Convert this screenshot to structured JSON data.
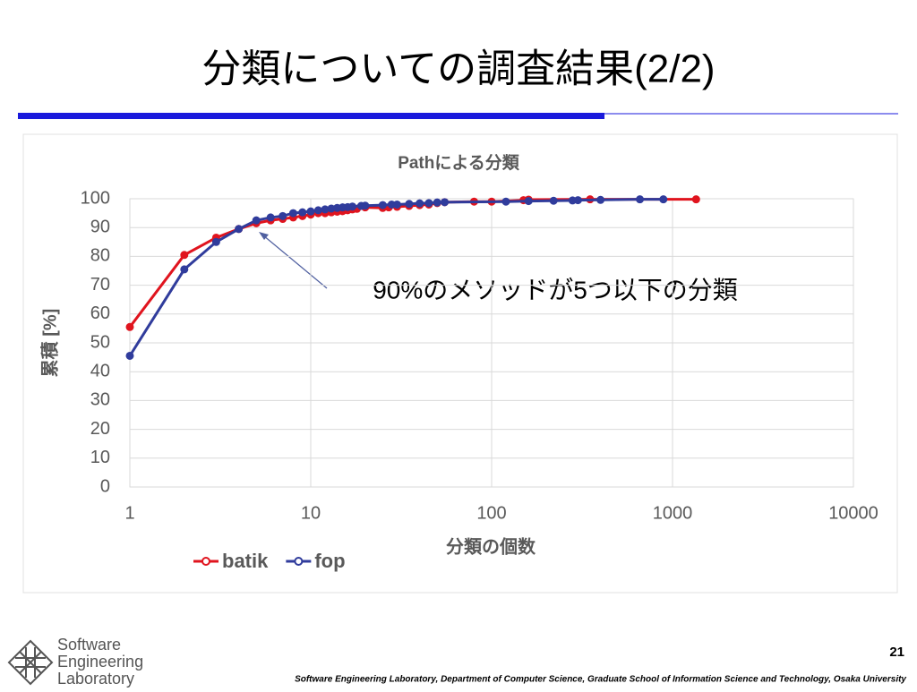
{
  "slide": {
    "title": "分類についての調査結果(2/2)",
    "page_number": 21,
    "footer": "Software Engineering Laboratory, Department of Computer Science, Graduate School of Information Science and Technology, Osaka University",
    "logo": [
      "Software",
      "Engineering",
      "Laboratory"
    ]
  },
  "chart_data": {
    "type": "line",
    "title": "Pathによる分類",
    "xlabel": "分類の個数",
    "ylabel": "累積 [%]",
    "annotation": "90%のメソッドが5つ以下の分類",
    "xlim": [
      1,
      10000
    ],
    "xticks": [
      1,
      10,
      100,
      1000,
      10000
    ],
    "log_x": true,
    "ylim": [
      0,
      100
    ],
    "yticks": [
      0,
      10,
      20,
      30,
      40,
      50,
      60,
      70,
      80,
      90,
      100
    ],
    "grid": true,
    "legend": "bottom",
    "series": [
      {
        "name": "batik",
        "color": "#e0141e",
        "x": [
          1,
          2,
          3,
          4,
          5,
          6,
          7,
          8,
          9,
          10,
          11,
          12,
          13,
          14,
          15,
          16,
          17,
          18,
          20,
          25,
          27,
          30,
          35,
          40,
          45,
          50,
          55,
          80,
          100,
          150,
          160,
          350,
          1350
        ],
        "values": [
          55.5,
          80.5,
          86.5,
          89.5,
          91.5,
          92.5,
          93,
          93.5,
          94,
          94.5,
          95,
          95,
          95.3,
          95.5,
          95.7,
          96,
          96.3,
          96.5,
          97,
          96.8,
          97,
          97.2,
          97.5,
          97.8,
          98,
          98.5,
          98.8,
          99,
          99,
          99.5,
          99.7,
          99.8,
          99.8
        ]
      },
      {
        "name": "fop",
        "color": "#303c9c",
        "x": [
          1,
          2,
          3,
          4,
          5,
          6,
          7,
          8,
          9,
          10,
          11,
          12,
          13,
          14,
          15,
          16,
          17,
          19,
          20,
          25,
          28,
          30,
          35,
          40,
          45,
          50,
          55,
          120,
          160,
          220,
          280,
          300,
          400,
          660,
          890
        ],
        "values": [
          45.5,
          75.5,
          85,
          89.5,
          92.5,
          93.5,
          94,
          95,
          95.3,
          95.6,
          96,
          96.3,
          96.6,
          96.8,
          97,
          97.1,
          97.3,
          97.5,
          97.6,
          97.8,
          98,
          98,
          98.2,
          98.4,
          98.5,
          98.7,
          98.8,
          99,
          99.2,
          99.3,
          99.4,
          99.5,
          99.6,
          99.8,
          99.8
        ]
      }
    ]
  }
}
